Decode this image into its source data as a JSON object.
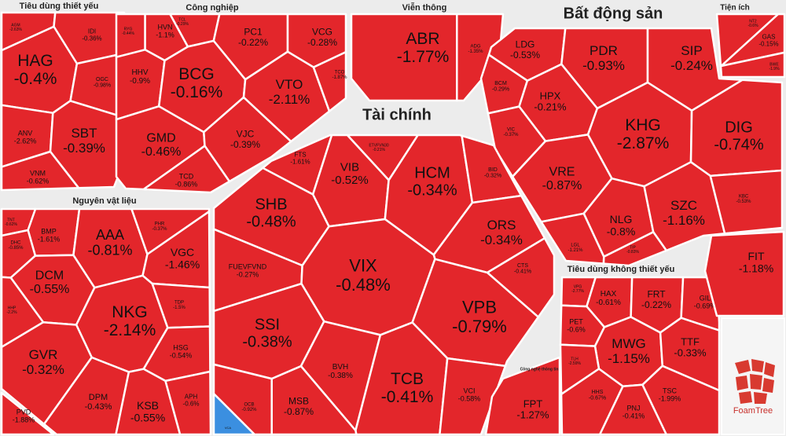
{
  "chart_data": {
    "type": "treemap",
    "color": "#e3262b",
    "logo": "FoamTree",
    "groups": [
      {
        "title": "Tiêu dùng thiết yếu",
        "items": [
          {
            "name": "AGM",
            "value": -2.63,
            "value_label": "-2.63%"
          },
          {
            "name": "IDI",
            "value": -0.36,
            "value_label": "-0.36%"
          },
          {
            "name": "HAG",
            "value": -0.4,
            "value_label": "-0.4%"
          },
          {
            "name": "OGC",
            "value": -0.98,
            "value_label": "-0.98%"
          },
          {
            "name": "ANV",
            "value": -2.62,
            "value_label": "-2.62%"
          },
          {
            "name": "SBT",
            "value": -0.39,
            "value_label": "-0.39%"
          },
          {
            "name": "VNM",
            "value": -0.62,
            "value_label": "-0.62%"
          }
        ]
      },
      {
        "title": "Công nghiệp",
        "items": [
          {
            "name": "RYG",
            "value": -0.44,
            "value_label": "-0.44%"
          },
          {
            "name": "HVN",
            "value": -1.1,
            "value_label": "-1.1%"
          },
          {
            "name": "TCL",
            "value": -0.29,
            "value_label": "-0.29%"
          },
          {
            "name": "PC1",
            "value": -0.22,
            "value_label": "-0.22%"
          },
          {
            "name": "VCG",
            "value": -0.28,
            "value_label": "-0.28%"
          },
          {
            "name": "HHV",
            "value": -0.9,
            "value_label": "-0.9%"
          },
          {
            "name": "BCG",
            "value": -0.16,
            "value_label": "-0.16%"
          },
          {
            "name": "VTO",
            "value": -2.11,
            "value_label": "-2.11%"
          },
          {
            "name": "TCO",
            "value": -1.87,
            "value_label": "-1.87%"
          },
          {
            "name": "GMD",
            "value": -0.46,
            "value_label": "-0.46%"
          },
          {
            "name": "VJC",
            "value": -0.39,
            "value_label": "-0.39%"
          },
          {
            "name": "TCD",
            "value": -0.86,
            "value_label": "-0.86%"
          }
        ]
      },
      {
        "title": "Viễn thông",
        "items": [
          {
            "name": "ABR",
            "value": -1.77,
            "value_label": "-1.77%"
          },
          {
            "name": "ADG",
            "value": -1.35,
            "value_label": "-1.35%"
          }
        ]
      },
      {
        "title": "Bất động sản",
        "items": [
          {
            "name": "LDG",
            "value": -0.53,
            "value_label": "-0.53%"
          },
          {
            "name": "PDR",
            "value": -0.93,
            "value_label": "-0.93%"
          },
          {
            "name": "SIP",
            "value": -0.24,
            "value_label": "-0.24%"
          },
          {
            "name": "BCM",
            "value": -0.29,
            "value_label": "-0.29%"
          },
          {
            "name": "HPX",
            "value": -0.21,
            "value_label": "-0.21%"
          },
          {
            "name": "VIC",
            "value": -0.37,
            "value_label": "-0.37%"
          },
          {
            "name": "KHG",
            "value": -2.87,
            "value_label": "-2.87%"
          },
          {
            "name": "DIG",
            "value": -0.74,
            "value_label": "-0.74%"
          },
          {
            "name": "VRE",
            "value": -0.87,
            "value_label": "-0.87%"
          },
          {
            "name": "NLG",
            "value": -0.8,
            "value_label": "-0.8%"
          },
          {
            "name": "SZC",
            "value": -1.16,
            "value_label": "-1.16%"
          },
          {
            "name": "KBC",
            "value": -0.53,
            "value_label": "-0.53%"
          },
          {
            "name": "LGL",
            "value": -1.21,
            "value_label": "-1.21%"
          },
          {
            "name": "TIP",
            "value": -0.83,
            "value_label": "-0.83%"
          }
        ]
      },
      {
        "title": "Tiện ích",
        "items": [
          {
            "name": "NT2",
            "value": -0.6,
            "value_label": "-0.6%"
          },
          {
            "name": "GAS",
            "value": -0.15,
            "value_label": "-0.15%"
          },
          {
            "name": "BWE",
            "value": -1.9,
            "value_label": "-1.9%"
          }
        ]
      },
      {
        "title": "Tài chính",
        "items": [
          {
            "name": "FTS",
            "value": -1.61,
            "value_label": "-1.61%"
          },
          {
            "name": "ETVFVN30",
            "value": -0.21,
            "value_label": "-0.21%"
          },
          {
            "name": "VIB",
            "value": -0.52,
            "value_label": "-0.52%"
          },
          {
            "name": "HCM",
            "value": -0.34,
            "value_label": "-0.34%"
          },
          {
            "name": "BID",
            "value": -0.32,
            "value_label": "-0.32%"
          },
          {
            "name": "SHB",
            "value": -0.48,
            "value_label": "-0.48%"
          },
          {
            "name": "ORS",
            "value": -0.34,
            "value_label": "-0.34%"
          },
          {
            "name": "FUEVFVND",
            "value": -0.27,
            "value_label": "-0.27%"
          },
          {
            "name": "VIX",
            "value": -0.48,
            "value_label": "-0.48%"
          },
          {
            "name": "CTS",
            "value": -0.41,
            "value_label": "-0.41%"
          },
          {
            "name": "SSI",
            "value": -0.38,
            "value_label": "-0.38%"
          },
          {
            "name": "VPB",
            "value": -0.79,
            "value_label": "-0.79%"
          },
          {
            "name": "BVH",
            "value": -0.38,
            "value_label": "-0.38%"
          },
          {
            "name": "TCB",
            "value": -0.41,
            "value_label": "-0.41%"
          },
          {
            "name": "MSB",
            "value": -0.87,
            "value_label": "-0.87%"
          },
          {
            "name": "VCI",
            "value": -0.58,
            "value_label": "-0.58%"
          },
          {
            "name": "OCB",
            "value": -0.92,
            "value_label": "-0.92%"
          },
          {
            "name": "VCA",
            "color": "#3b8fe0"
          }
        ]
      },
      {
        "title": "Nguyên vật liệu",
        "items": [
          {
            "name": "TNT",
            "value": -0.62,
            "value_label": "-0.62%"
          },
          {
            "name": "BMP",
            "value": -1.61,
            "value_label": "-1.61%"
          },
          {
            "name": "AAA",
            "value": -0.81,
            "value_label": "-0.81%"
          },
          {
            "name": "PHR",
            "value": -0.37,
            "value_label": "-0.37%"
          },
          {
            "name": "DHC",
            "value": -0.85,
            "value_label": "-0.85%"
          },
          {
            "name": "VGC",
            "value": -1.46,
            "value_label": "-1.46%"
          },
          {
            "name": "DCM",
            "value": -0.55,
            "value_label": "-0.55%"
          },
          {
            "name": "HHP",
            "value": -2.2,
            "value_label": "-2.2%"
          },
          {
            "name": "TDP",
            "value": -1.5,
            "value_label": "-1.5%"
          },
          {
            "name": "NKG",
            "value": -2.14,
            "value_label": "-2.14%"
          },
          {
            "name": "GVR",
            "value": -0.32,
            "value_label": "-0.32%"
          },
          {
            "name": "HSG",
            "value": -0.54,
            "value_label": "-0.54%"
          },
          {
            "name": "DPM",
            "value": -0.43,
            "value_label": "-0.43%"
          },
          {
            "name": "KSB",
            "value": -0.55,
            "value_label": "-0.55%"
          },
          {
            "name": "APH",
            "value": -0.6,
            "value_label": "-0.6%"
          }
        ]
      },
      {
        "items": [
          {
            "name": "PVD",
            "value": -1.88,
            "value_label": "-1.88%"
          }
        ]
      },
      {
        "title": "Công nghệ thông tin",
        "items": [
          {
            "name": "FPT",
            "value": -1.27,
            "value_label": "-1.27%"
          }
        ]
      },
      {
        "title": "Tiêu dùng không thiết yếu",
        "items": [
          {
            "name": "VPG",
            "value": -2.77,
            "value_label": "-2.77%"
          },
          {
            "name": "HAX",
            "value": -0.61,
            "value_label": "-0.61%"
          },
          {
            "name": "FRT",
            "value": -0.22,
            "value_label": "-0.22%"
          },
          {
            "name": "GIL",
            "value": -0.69,
            "value_label": "-0.69%"
          },
          {
            "name": "PET",
            "value": -0.6,
            "value_label": "-0.6%"
          },
          {
            "name": "MWG",
            "value": -1.15,
            "value_label": "-1.15%"
          },
          {
            "name": "TTF",
            "value": -0.33,
            "value_label": "-0.33%"
          },
          {
            "name": "TLH",
            "value": -2.59,
            "value_label": "-2.59%"
          },
          {
            "name": "HHS",
            "value": -0.67,
            "value_label": "-0.67%"
          },
          {
            "name": "TSC",
            "value": -1.99,
            "value_label": "-1.99%"
          },
          {
            "name": "PNJ",
            "value": -0.41,
            "value_label": "-0.41%"
          }
        ]
      },
      {
        "items": [
          {
            "name": "FIT",
            "value": -1.18,
            "value_label": "-1.18%"
          }
        ]
      }
    ]
  }
}
